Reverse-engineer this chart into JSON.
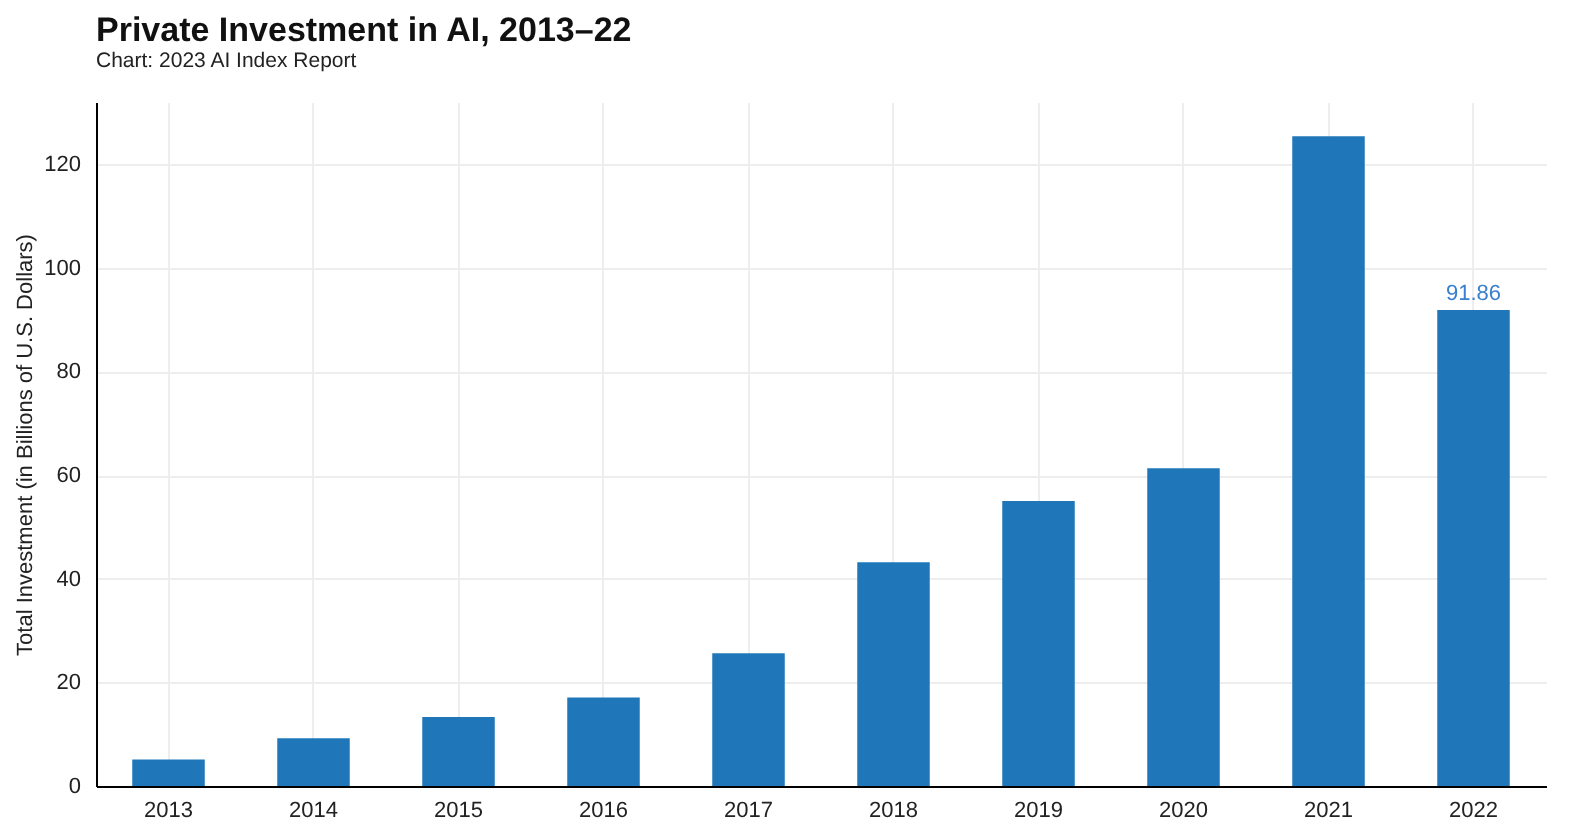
{
  "chart_data": {
    "type": "bar",
    "title": "Private Investment in AI, 2013–22",
    "annotations": [
      "Chart: 2023 AI Index Report"
    ],
    "ylabel": "Total Investment (in Billions of U.S. Dollars)",
    "categories": [
      "2013",
      "2014",
      "2015",
      "2016",
      "2017",
      "2018",
      "2019",
      "2020",
      "2021",
      "2022"
    ],
    "values": [
      5.1,
      9.2,
      13.3,
      17.1,
      25.6,
      43.2,
      55.0,
      61.3,
      125.4,
      91.86
    ],
    "value_labels": [
      null,
      null,
      null,
      null,
      null,
      null,
      null,
      null,
      null,
      "91.86"
    ],
    "color": "#1f77ba",
    "ylim": [
      0,
      132
    ],
    "yticks": [
      0,
      20,
      40,
      60,
      80,
      100,
      120
    ],
    "grid": true
  }
}
